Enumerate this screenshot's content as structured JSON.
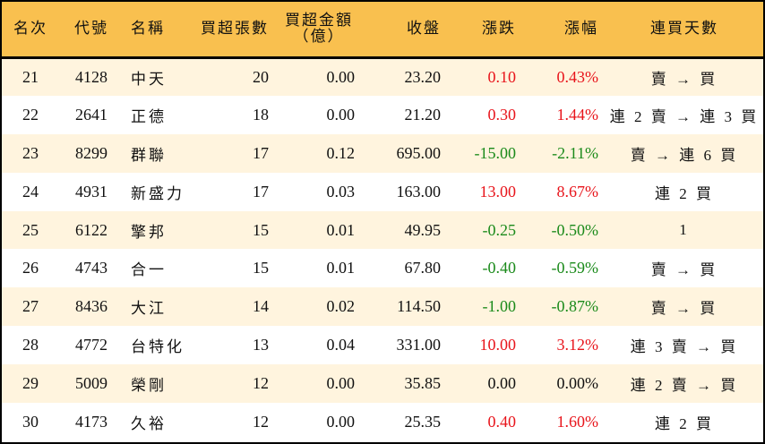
{
  "header": {
    "rank": "名次",
    "code": "代號",
    "name": "名稱",
    "net_buy_lots": "買超張數",
    "net_buy_amount_line1": "買超金額",
    "net_buy_amount_line2": "（億）",
    "close": "收盤",
    "change": "漲跌",
    "change_pct": "漲幅",
    "consecutive_days": "連買天數"
  },
  "colors": {
    "header_bg": "#f9c04f",
    "odd_row_bg": "#fff4de",
    "even_row_bg": "#ffffff",
    "up": "#e8141b",
    "down": "#1a8a1a"
  },
  "rows": [
    {
      "rank": "21",
      "code": "4128",
      "name": "中天",
      "lots": "20",
      "amount": "0.00",
      "close": "23.20",
      "change": "0.10",
      "pct": "0.43%",
      "trend": "up",
      "streak": "賣 → 買"
    },
    {
      "rank": "22",
      "code": "2641",
      "name": "正德",
      "lots": "18",
      "amount": "0.00",
      "close": "21.20",
      "change": "0.30",
      "pct": "1.44%",
      "trend": "up",
      "streak": "連 2 賣 → 連 3 買"
    },
    {
      "rank": "23",
      "code": "8299",
      "name": "群聯",
      "lots": "17",
      "amount": "0.12",
      "close": "695.00",
      "change": "-15.00",
      "pct": "-2.11%",
      "trend": "down",
      "streak": "賣 → 連 6 買"
    },
    {
      "rank": "24",
      "code": "4931",
      "name": "新盛力",
      "lots": "17",
      "amount": "0.03",
      "close": "163.00",
      "change": "13.00",
      "pct": "8.67%",
      "trend": "up",
      "streak": "連 2 買"
    },
    {
      "rank": "25",
      "code": "6122",
      "name": "擎邦",
      "lots": "15",
      "amount": "0.01",
      "close": "49.95",
      "change": "-0.25",
      "pct": "-0.50%",
      "trend": "down",
      "streak": "1"
    },
    {
      "rank": "26",
      "code": "4743",
      "name": "合一",
      "lots": "15",
      "amount": "0.01",
      "close": "67.80",
      "change": "-0.40",
      "pct": "-0.59%",
      "trend": "down",
      "streak": "賣 → 買"
    },
    {
      "rank": "27",
      "code": "8436",
      "name": "大江",
      "lots": "14",
      "amount": "0.02",
      "close": "114.50",
      "change": "-1.00",
      "pct": "-0.87%",
      "trend": "down",
      "streak": "賣 → 買"
    },
    {
      "rank": "28",
      "code": "4772",
      "name": "台特化",
      "lots": "13",
      "amount": "0.04",
      "close": "331.00",
      "change": "10.00",
      "pct": "3.12%",
      "trend": "up",
      "streak": "連 3 賣 → 買"
    },
    {
      "rank": "29",
      "code": "5009",
      "name": "榮剛",
      "lots": "12",
      "amount": "0.00",
      "close": "35.85",
      "change": "0.00",
      "pct": "0.00%",
      "trend": "flat",
      "streak": "連 2 賣 → 買"
    },
    {
      "rank": "30",
      "code": "4173",
      "name": "久裕",
      "lots": "12",
      "amount": "0.00",
      "close": "25.35",
      "change": "0.40",
      "pct": "1.60%",
      "trend": "up",
      "streak": "連 2 買"
    }
  ]
}
